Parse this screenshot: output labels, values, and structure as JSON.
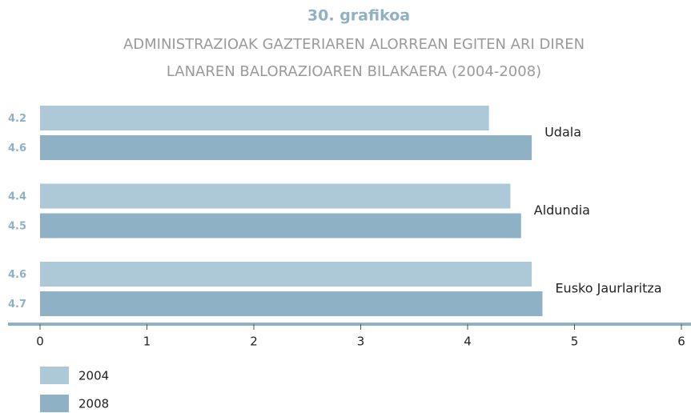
{
  "chart_data": {
    "type": "bar",
    "orientation": "horizontal",
    "title": "30. grafikoa",
    "subtitle": [
      "ADMINISTRAZIOAK GAZTERIAREN ALORREAN EGITEN ARI DIREN",
      "LANAREN BALORAZIOAREN BILAKAERA (2004-2008)"
    ],
    "categories": [
      "Udala",
      "Aldundia",
      "Eusko Jaurlaritza"
    ],
    "series": [
      {
        "name": "2004",
        "color": "#adc9d8",
        "values": [
          4.2,
          4.4,
          4.6
        ]
      },
      {
        "name": "2008",
        "color": "#8fb1c6",
        "values": [
          4.6,
          4.5,
          4.7
        ]
      }
    ],
    "xlim": [
      0,
      6
    ],
    "xticks": [
      0,
      1,
      2,
      3,
      4,
      5,
      6
    ],
    "grid": false,
    "legend": "bottom-left"
  }
}
